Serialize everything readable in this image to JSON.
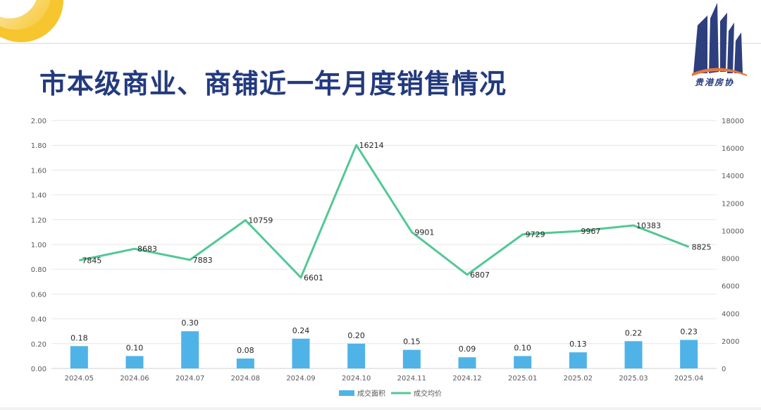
{
  "page": {
    "title": "市本级商业、商铺近一年月度销售情况",
    "logo_text": "贵港房协"
  },
  "colors": {
    "bar": "#4fb3e8",
    "line": "#52c896",
    "title": "#233a7e",
    "accent": "#f7c52d",
    "grid": "#e6e6e6"
  },
  "chart_data": {
    "type": "bar+line",
    "title": "",
    "categories": [
      "2024.05",
      "2024.06",
      "2024.07",
      "2024.08",
      "2024.09",
      "2024.10",
      "2024.11",
      "2024.12",
      "2025.01",
      "2025.02",
      "2025.03",
      "2025.04"
    ],
    "series": [
      {
        "name": "成交面积",
        "type": "bar",
        "axis": "left",
        "values": [
          0.18,
          0.1,
          0.3,
          0.08,
          0.24,
          0.2,
          0.15,
          0.09,
          0.1,
          0.13,
          0.22,
          0.23
        ],
        "labels": [
          "0.18",
          "0.10",
          "0.30",
          "0.08",
          "0.24",
          "0.20",
          "0.15",
          "0.09",
          "0.10",
          "0.13",
          "0.22",
          "0.23"
        ]
      },
      {
        "name": "成交均价",
        "type": "line",
        "axis": "right",
        "values": [
          7845,
          8683,
          7883,
          10759,
          6601,
          16214,
          9901,
          6807,
          9729,
          9967,
          10383,
          8825
        ],
        "labels": [
          "7845",
          "8683",
          "7883",
          "10759",
          "6601",
          "16214",
          "9901",
          "6807",
          "9729",
          "9967",
          "10383",
          "8825"
        ]
      }
    ],
    "y_left": {
      "range": [
        0,
        2
      ],
      "ticks": [
        "0.00",
        "0.20",
        "0.40",
        "0.60",
        "0.80",
        "1.00",
        "1.20",
        "1.40",
        "1.60",
        "1.80",
        "2.00"
      ]
    },
    "y_right": {
      "range": [
        0,
        18000
      ],
      "ticks": [
        "0",
        "2000",
        "4000",
        "6000",
        "8000",
        "10000",
        "12000",
        "14000",
        "16000",
        "18000"
      ]
    },
    "grid": true,
    "legend_position": "bottom-center",
    "legend": [
      "成交面积",
      "成交均价"
    ]
  }
}
